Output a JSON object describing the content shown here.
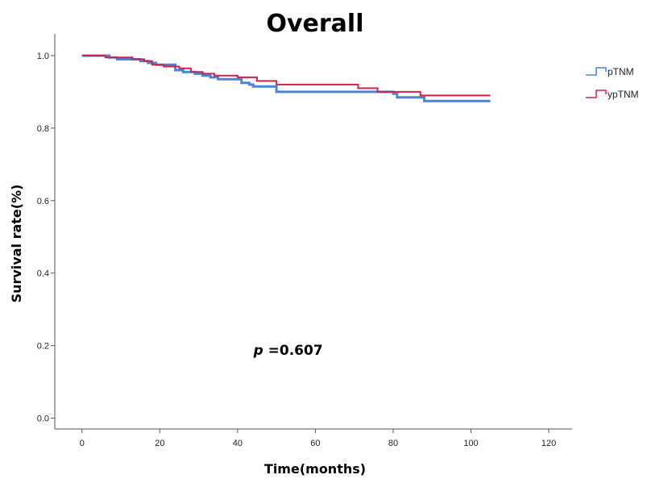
{
  "chart_data": {
    "type": "line",
    "title": "Overall",
    "xlabel": "Time(months)",
    "ylabel": "Survival rate(%)",
    "xlim": [
      -7,
      126
    ],
    "ylim": [
      -0.03,
      1.06
    ],
    "x_ticks": [
      0,
      20,
      40,
      60,
      80,
      100,
      120
    ],
    "x_tick_labels": [
      "0",
      "20",
      "40",
      "60",
      "80",
      "100",
      "120"
    ],
    "y_ticks": [
      0.0,
      0.2,
      0.4,
      0.6,
      0.8,
      1.0
    ],
    "y_tick_labels": [
      "0.0",
      "0.2",
      "0.4",
      "0.6",
      "0.8",
      "1.0"
    ],
    "grid": false,
    "legend_position": "top-right",
    "annotation": {
      "italic": "p",
      "text": " =0.607",
      "x": 53,
      "y": 0.175
    },
    "series": [
      {
        "name": "pTNM",
        "color": "#4a86d4",
        "step": true,
        "x": [
          0,
          7,
          9,
          15,
          17,
          19,
          24,
          26,
          29,
          31,
          33,
          35,
          41,
          43,
          44,
          50,
          52,
          55,
          60,
          65,
          70,
          75,
          80,
          81,
          88,
          105
        ],
        "y": [
          1.0,
          0.995,
          0.99,
          0.985,
          0.98,
          0.975,
          0.96,
          0.955,
          0.95,
          0.945,
          0.94,
          0.935,
          0.925,
          0.92,
          0.915,
          0.9,
          0.9,
          0.9,
          0.9,
          0.9,
          0.9,
          0.9,
          0.895,
          0.885,
          0.875,
          0.875
        ]
      },
      {
        "name": "ypTNM",
        "color": "#d0234a",
        "step": true,
        "x": [
          0,
          6,
          8,
          13,
          16,
          18,
          21,
          25,
          28,
          31,
          34,
          40,
          45,
          50,
          63,
          71,
          76,
          87,
          105
        ],
        "y": [
          1.0,
          0.995,
          0.995,
          0.99,
          0.985,
          0.975,
          0.97,
          0.965,
          0.955,
          0.95,
          0.945,
          0.94,
          0.93,
          0.92,
          0.92,
          0.91,
          0.9,
          0.89,
          0.89
        ]
      }
    ]
  }
}
